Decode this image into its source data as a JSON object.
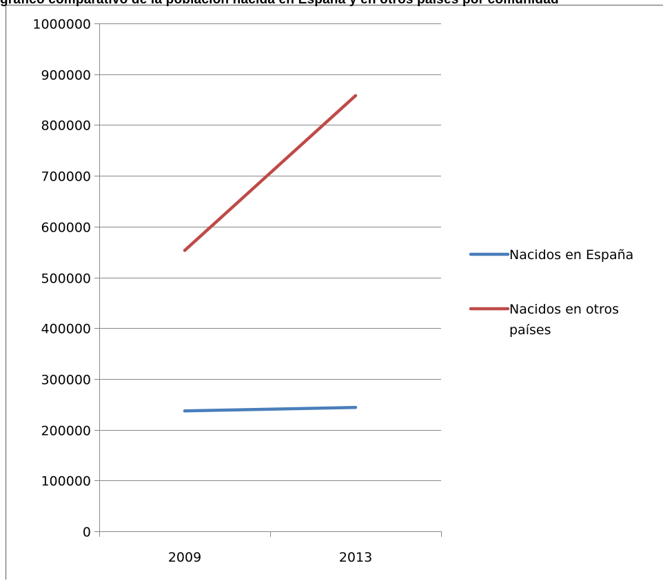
{
  "page": {
    "title_fragment": "gráfico comparativo de la población nacida en España y en otros países por comunidad"
  },
  "chart_data": {
    "type": "line",
    "categories": [
      "2009",
      "2013"
    ],
    "series": [
      {
        "name": "Nacidos en España",
        "values": [
          237000,
          244000
        ],
        "color": "#4a7ebb"
      },
      {
        "name": "Nacidos en otros países",
        "values": [
          553000,
          858000
        ],
        "color": "#be4b48"
      }
    ],
    "ylim": [
      0,
      1000000
    ],
    "yticks": [
      0,
      100000,
      200000,
      300000,
      400000,
      500000,
      600000,
      700000,
      800000,
      900000,
      1000000
    ],
    "ytick_labels": [
      "0",
      "100000",
      "200000",
      "300000",
      "400000",
      "500000",
      "600000",
      "700000",
      "800000",
      "900000",
      "1000000"
    ],
    "grid": true,
    "legend": "right",
    "legend_labels": [
      [
        "Nacidos en España"
      ],
      [
        "Nacidos en otros",
        "países"
      ]
    ]
  }
}
